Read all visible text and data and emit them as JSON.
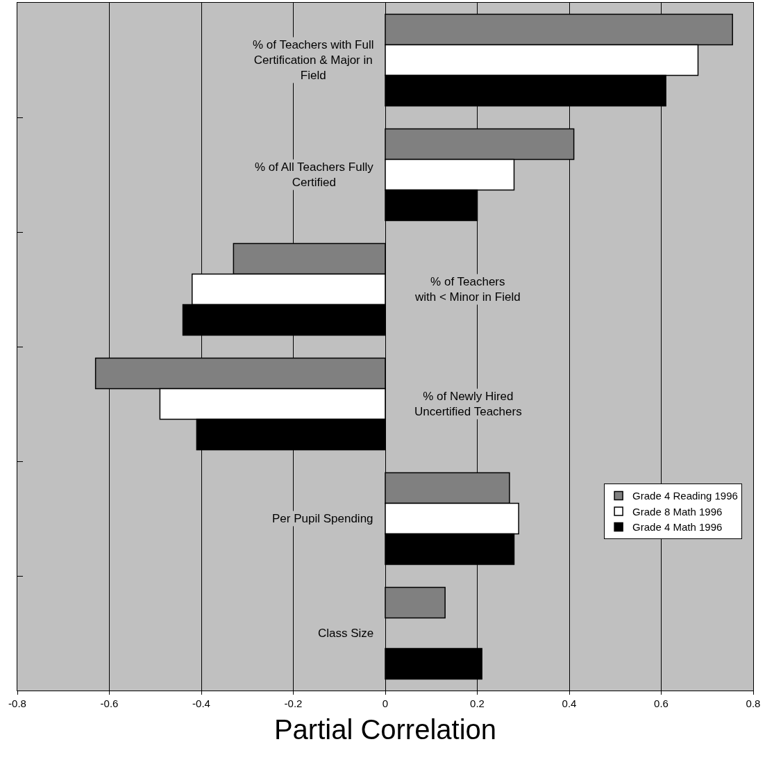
{
  "chart_data": {
    "type": "bar",
    "orientation": "horizontal",
    "xlabel": "Partial Correlation",
    "categories": [
      "% of Teachers with Full\nCertification & Major in\nField",
      "% of All Teachers Fully\nCertified",
      "% of Teachers\nwith < Minor in Field",
      "% of Newly Hired\nUncertified Teachers",
      "Per Pupil Spending",
      "Class Size"
    ],
    "series": [
      {
        "name": "Grade 4 Reading 1996",
        "color": "#808080",
        "values": [
          0.755,
          0.41,
          -0.33,
          -0.63,
          0.27,
          0.13
        ]
      },
      {
        "name": "Grade 8 Math 1996",
        "color": "#ffffff",
        "values": [
          0.68,
          0.28,
          -0.42,
          -0.49,
          0.29,
          null
        ]
      },
      {
        "name": "Grade 4 Math 1996",
        "color": "#000000",
        "values": [
          0.61,
          0.2,
          -0.44,
          -0.41,
          0.28,
          0.21
        ]
      }
    ],
    "xlim": [
      -0.8,
      0.8
    ],
    "xticks": [
      -0.8,
      -0.6,
      -0.4,
      -0.2,
      0,
      0.2,
      0.4,
      0.6,
      0.8
    ],
    "grid": "x",
    "legend": "bottom right"
  }
}
